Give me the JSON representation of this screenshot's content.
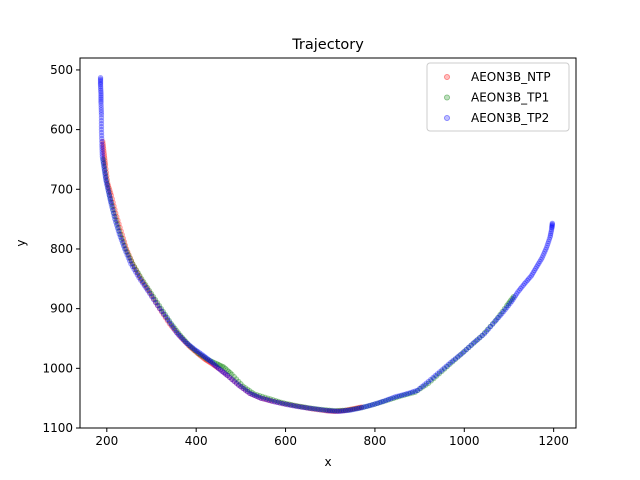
{
  "chart_data": {
    "type": "scatter",
    "title": "Trajectory",
    "xlabel": "x",
    "ylabel": "y",
    "xlim": [
      140,
      1250
    ],
    "ylim": [
      1100,
      480
    ],
    "y_inverted": true,
    "xticks": [
      200,
      400,
      600,
      800,
      1000,
      1200
    ],
    "yticks": [
      500,
      600,
      700,
      800,
      900,
      1000,
      1100
    ],
    "grid": false,
    "legend_position": "top-right",
    "series": [
      {
        "name": "AEON3B_NTP",
        "color": "#ff0000",
        "points": [
          [
            191,
            620
          ],
          [
            194,
            640
          ],
          [
            197,
            660
          ],
          [
            202,
            690
          ],
          [
            210,
            710
          ],
          [
            220,
            740
          ],
          [
            232,
            770
          ],
          [
            244,
            800
          ],
          [
            258,
            825
          ],
          [
            276,
            850
          ],
          [
            296,
            873
          ],
          [
            318,
            900
          ],
          [
            340,
            925
          ],
          [
            362,
            945
          ],
          [
            383,
            962
          ],
          [
            403,
            975
          ],
          [
            420,
            985
          ],
          [
            435,
            992
          ],
          [
            450,
            1000
          ],
          [
            470,
            1012
          ],
          [
            495,
            1028
          ],
          [
            520,
            1042
          ],
          [
            545,
            1050
          ],
          [
            570,
            1055
          ],
          [
            600,
            1060
          ],
          [
            630,
            1064
          ],
          [
            660,
            1068
          ],
          [
            690,
            1071
          ],
          [
            710,
            1072
          ],
          [
            730,
            1071
          ],
          [
            750,
            1068
          ],
          [
            770,
            1065
          ]
        ]
      },
      {
        "name": "AEON3B_TP1",
        "color": "#008000",
        "points": [
          [
            192,
            650
          ],
          [
            198,
            680
          ],
          [
            206,
            710
          ],
          [
            216,
            740
          ],
          [
            228,
            770
          ],
          [
            242,
            800
          ],
          [
            258,
            825
          ],
          [
            278,
            850
          ],
          [
            300,
            875
          ],
          [
            322,
            900
          ],
          [
            344,
            925
          ],
          [
            365,
            945
          ],
          [
            385,
            962
          ],
          [
            405,
            975
          ],
          [
            425,
            985
          ],
          [
            445,
            992
          ],
          [
            462,
            998
          ],
          [
            480,
            1010
          ],
          [
            505,
            1030
          ],
          [
            530,
            1043
          ],
          [
            560,
            1050
          ],
          [
            590,
            1057
          ],
          [
            620,
            1062
          ],
          [
            650,
            1066
          ],
          [
            680,
            1069
          ],
          [
            710,
            1071
          ],
          [
            740,
            1070
          ],
          [
            770,
            1066
          ],
          [
            800,
            1060
          ],
          [
            830,
            1053
          ],
          [
            860,
            1046
          ],
          [
            890,
            1040
          ],
          [
            920,
            1025
          ],
          [
            950,
            1005
          ],
          [
            980,
            985
          ],
          [
            1010,
            965
          ],
          [
            1040,
            945
          ],
          [
            1070,
            920
          ],
          [
            1095,
            895
          ],
          [
            1110,
            880
          ]
        ]
      },
      {
        "name": "AEON3B_TP2",
        "color": "#0000ff",
        "points": [
          [
            186,
            513
          ],
          [
            186,
            525
          ],
          [
            187,
            540
          ],
          [
            187,
            555
          ],
          [
            188,
            575
          ],
          [
            188,
            600
          ],
          [
            189,
            625
          ],
          [
            190,
            645
          ],
          [
            194,
            665
          ],
          [
            198,
            685
          ],
          [
            204,
            705
          ],
          [
            210,
            725
          ],
          [
            218,
            750
          ],
          [
            228,
            775
          ],
          [
            240,
            800
          ],
          [
            254,
            825
          ],
          [
            272,
            848
          ],
          [
            292,
            870
          ],
          [
            314,
            895
          ],
          [
            336,
            918
          ],
          [
            356,
            940
          ],
          [
            376,
            956
          ],
          [
            396,
            968
          ],
          [
            415,
            978
          ],
          [
            432,
            988
          ],
          [
            450,
            1000
          ],
          [
            470,
            1012
          ],
          [
            495,
            1028
          ],
          [
            520,
            1042
          ],
          [
            545,
            1050
          ],
          [
            575,
            1056
          ],
          [
            605,
            1061
          ],
          [
            635,
            1065
          ],
          [
            665,
            1068
          ],
          [
            695,
            1071
          ],
          [
            720,
            1072
          ],
          [
            745,
            1070
          ],
          [
            770,
            1066
          ],
          [
            795,
            1061
          ],
          [
            820,
            1055
          ],
          [
            845,
            1048
          ],
          [
            870,
            1043
          ],
          [
            895,
            1037
          ],
          [
            920,
            1022
          ],
          [
            945,
            1006
          ],
          [
            970,
            990
          ],
          [
            995,
            975
          ],
          [
            1020,
            958
          ],
          [
            1045,
            942
          ],
          [
            1068,
            922
          ],
          [
            1088,
            905
          ],
          [
            1106,
            888
          ],
          [
            1120,
            872
          ],
          [
            1135,
            858
          ],
          [
            1150,
            845
          ],
          [
            1162,
            830
          ],
          [
            1174,
            815
          ],
          [
            1184,
            798
          ],
          [
            1192,
            780
          ],
          [
            1196,
            765
          ],
          [
            1197,
            757
          ]
        ]
      }
    ]
  }
}
